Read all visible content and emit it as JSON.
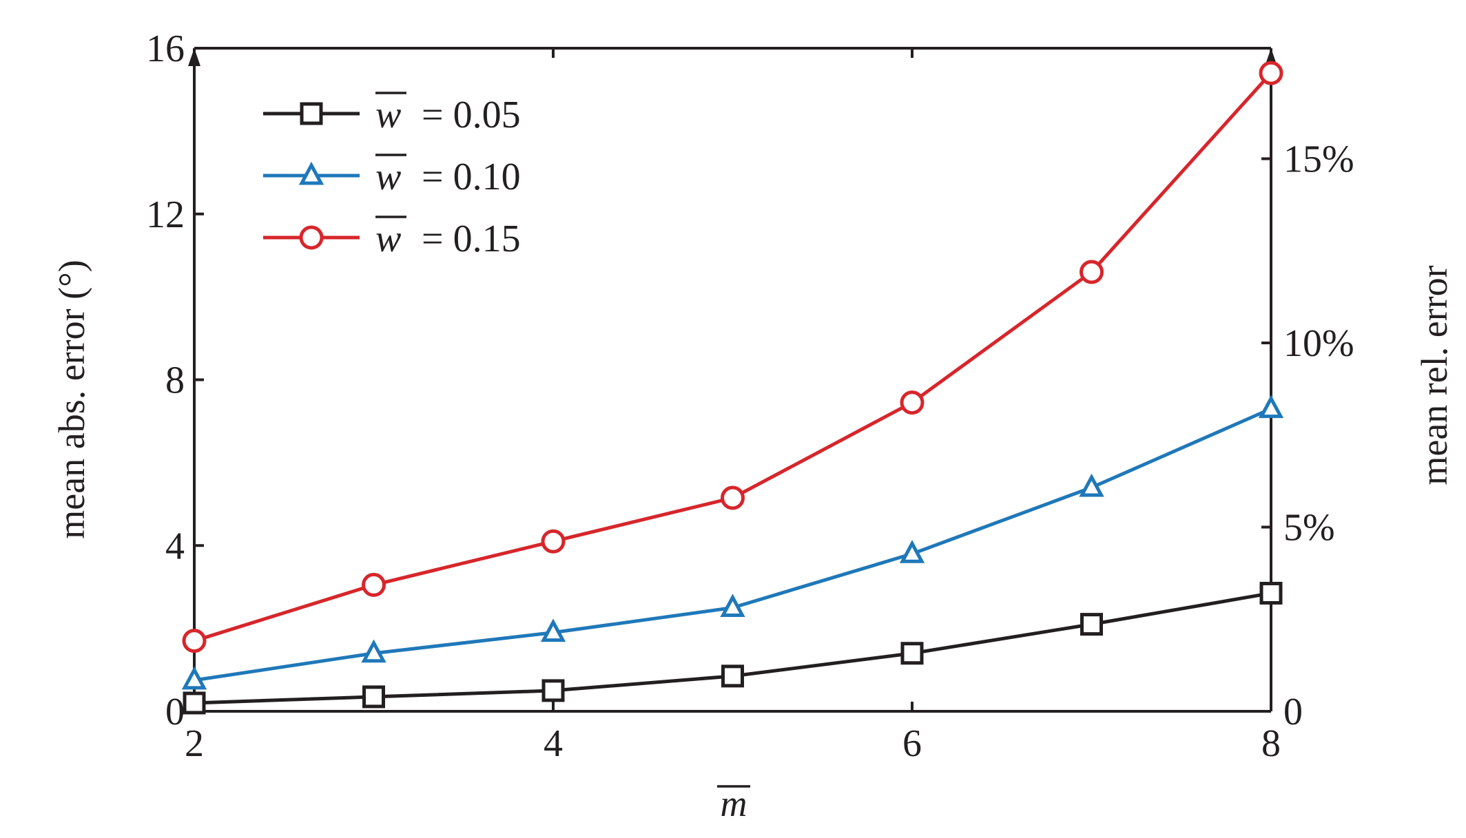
{
  "chart_data": {
    "type": "line",
    "x": [
      2,
      3,
      4,
      5,
      6,
      7,
      8
    ],
    "xlim": [
      2,
      8
    ],
    "ylim": [
      0,
      16
    ],
    "y2lim_percent": [
      0,
      18
    ],
    "x_ticks": [
      "2",
      "4",
      "6",
      "8"
    ],
    "y_ticks": [
      "0",
      "4",
      "8",
      "12",
      "16"
    ],
    "y2_ticks": [
      "0",
      "5%",
      "10%",
      "15%"
    ],
    "xlabel": "m",
    "ylabel": "mean abs. error (°)",
    "y2label": "mean rel. error",
    "legend_position": "top-left",
    "grid": false,
    "series": [
      {
        "name": "w = 0.05",
        "legend_var": "w",
        "legend_value": "= 0.05",
        "color": "#231f20",
        "marker": "square",
        "values": [
          0.2,
          0.35,
          0.5,
          0.85,
          1.4,
          2.1,
          2.85
        ]
      },
      {
        "name": "w = 0.10",
        "legend_var": "w",
        "legend_value": "= 0.10",
        "color": "#1f78b9",
        "marker": "triangle",
        "values": [
          0.75,
          1.4,
          1.9,
          2.5,
          3.8,
          5.4,
          7.3
        ]
      },
      {
        "name": "w = 0.15",
        "legend_var": "w",
        "legend_value": "= 0.15",
        "color": "#d7262b",
        "marker": "circle",
        "values": [
          1.7,
          3.05,
          4.1,
          5.15,
          7.45,
          10.6,
          15.4
        ]
      }
    ]
  }
}
